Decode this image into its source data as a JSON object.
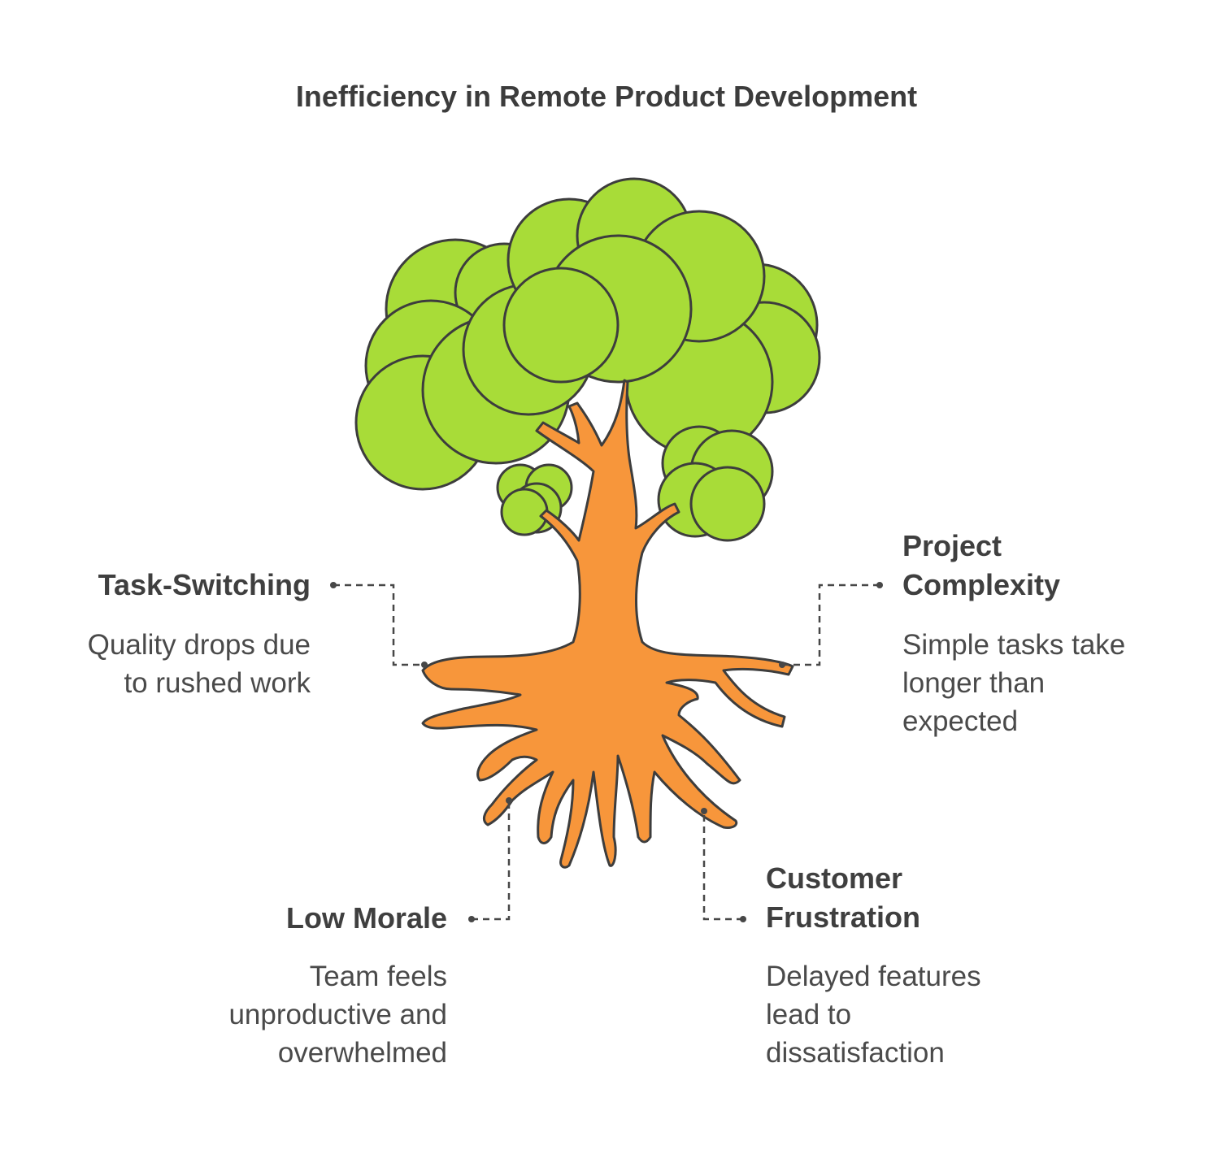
{
  "title": "Inefficiency in Remote Product Development",
  "colors": {
    "foliage": "#a8dc38",
    "trunk": "#f7963b",
    "outline": "#3d3d3d",
    "text": "#464646"
  },
  "items": {
    "task_switching": {
      "label": "Task-Switching",
      "desc_lines": [
        "Quality drops due",
        "to rushed work"
      ]
    },
    "project_complexity": {
      "label_lines": [
        "Project",
        "Complexity"
      ],
      "desc_lines": [
        "Simple tasks take",
        "longer than",
        "expected"
      ]
    },
    "low_morale": {
      "label": "Low Morale",
      "desc_lines": [
        "Team feels",
        "unproductive and",
        "overwhelmed"
      ]
    },
    "customer_frustration": {
      "label_lines": [
        "Customer",
        "Frustration"
      ],
      "desc_lines": [
        "Delayed features",
        "lead to",
        "dissatisfaction"
      ]
    }
  }
}
